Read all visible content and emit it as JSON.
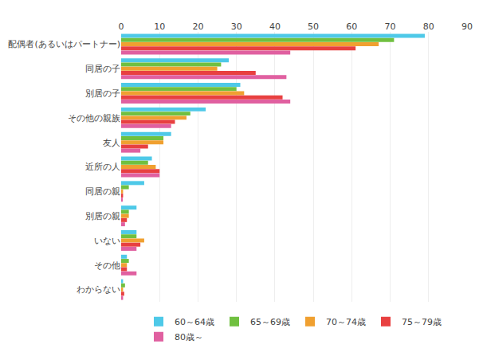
{
  "chart_data": {
    "type": "bar",
    "orientation": "horizontal",
    "categories": [
      "配偶者(あるいはパートナー)",
      "同居の子",
      "別居の子",
      "その他の親族",
      "友人",
      "近所の人",
      "同居の親",
      "別居の親",
      "いない",
      "その他",
      "わからない"
    ],
    "series": [
      {
        "name": "60～64歳",
        "color": "#4ec9e8",
        "values": [
          79,
          28,
          31,
          22,
          13,
          8,
          6,
          4,
          4,
          1.5,
          0.5
        ]
      },
      {
        "name": "65～69歳",
        "color": "#70c040",
        "values": [
          71,
          26,
          30,
          18,
          11,
          7,
          2,
          2,
          4,
          2,
          1
        ]
      },
      {
        "name": "70～74歳",
        "color": "#f0a030",
        "values": [
          67,
          25,
          32,
          17,
          11,
          9,
          0.5,
          2,
          6,
          1.5,
          0.5
        ]
      },
      {
        "name": "75～79歳",
        "color": "#e84040",
        "values": [
          61,
          35,
          42,
          14,
          7,
          10,
          0.5,
          1.5,
          5,
          1.5,
          0.8
        ]
      },
      {
        "name": "80歳～",
        "color": "#e060a0",
        "values": [
          44,
          43,
          44,
          13,
          5,
          10,
          0.3,
          1,
          4,
          4,
          0.5
        ]
      }
    ],
    "xlim": [
      0,
      90
    ],
    "xticks": [
      0,
      10,
      20,
      30,
      40,
      50,
      60,
      70,
      80,
      90
    ],
    "grid": true,
    "legend": "bottom"
  }
}
